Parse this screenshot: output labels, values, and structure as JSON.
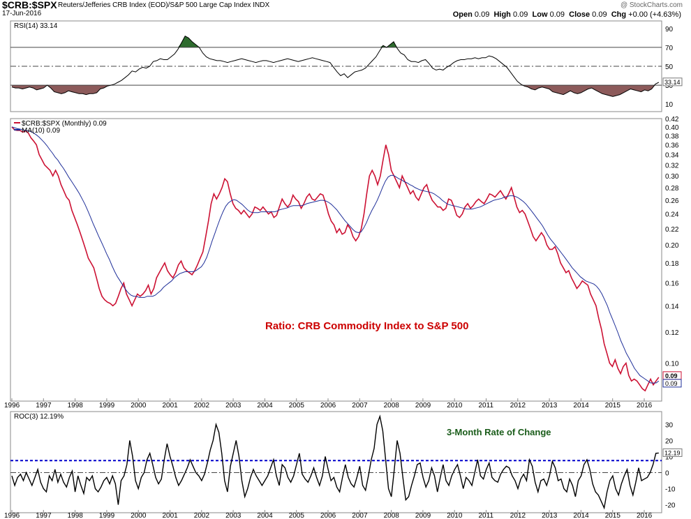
{
  "header": {
    "symbol": "$CRB:$SPX",
    "description": "Reuters/Jefferies CRB Index (EOD)/S&P 500 Large Cap Index",
    "exchange": "INDX",
    "date": "17-Jun-2016",
    "watermark": "@ StockCharts.com",
    "open_label": "Open",
    "open": "0.09",
    "high_label": "High",
    "high": "0.09",
    "low_label": "Low",
    "low": "0.09",
    "close_label": "Close",
    "close": "0.09",
    "chg_label": "Chg",
    "chg": "+0.00 (+4.63%)"
  },
  "colors": {
    "price": "#cc1133",
    "ma": "#1f2f99",
    "roc": "#000000",
    "roc_ref": "#0000cc",
    "rsi_over": "#2e6b2e",
    "rsi_under": "#8c5a5a",
    "annotation_red": "#cc0000",
    "annotation_green": "#1a5c1a"
  },
  "chart_data": [
    {
      "type": "line",
      "title": "RSI(14) 33.14",
      "legend": "RSI(14) 33.14",
      "last_value": "33.14",
      "yticks": [
        10,
        30,
        50,
        70,
        90
      ],
      "ylim": [
        2,
        98
      ],
      "reference_lines": [
        30,
        50,
        70
      ],
      "x_start": 1996.0,
      "x_end": 2016.46,
      "values": [
        28,
        27,
        27,
        26,
        27,
        28,
        27,
        25,
        26,
        27,
        30,
        27,
        23,
        22,
        21,
        22,
        24,
        23,
        22,
        21,
        21,
        20,
        21,
        21,
        22,
        26,
        27,
        29,
        30,
        31,
        33,
        35,
        38,
        41,
        45,
        44,
        47,
        49,
        48,
        50,
        55,
        56,
        58,
        57,
        57,
        60,
        63,
        68,
        75,
        82,
        80,
        76,
        73,
        70,
        64,
        60,
        58,
        57,
        56,
        56,
        55,
        54,
        55,
        56,
        57,
        58,
        57,
        56,
        55,
        54,
        55,
        56,
        56,
        55,
        54,
        55,
        56,
        57,
        58,
        57,
        56,
        55,
        56,
        57,
        58,
        59,
        58,
        57,
        56,
        55,
        54,
        49,
        44,
        40,
        42,
        38,
        41,
        44,
        45,
        46,
        48,
        52,
        56,
        60,
        66,
        72,
        70,
        73,
        76,
        69,
        64,
        62,
        57,
        55,
        55,
        54,
        56,
        57,
        53,
        48,
        46,
        47,
        46,
        49,
        51,
        54,
        56,
        57,
        57,
        58,
        58,
        59,
        58,
        59,
        59,
        61,
        60,
        58,
        55,
        52,
        49,
        44,
        39,
        34,
        31,
        29,
        28,
        26,
        25,
        27,
        28,
        27,
        26,
        23,
        22,
        21,
        20,
        22,
        24,
        22,
        21,
        22,
        24,
        26,
        27,
        25,
        23,
        21,
        20,
        19,
        18,
        19,
        20,
        22,
        24,
        26,
        25,
        24,
        23,
        25,
        24,
        26,
        31,
        33
      ]
    },
    {
      "type": "line",
      "title": "Ratio: CRB Commodity Index to S&P 500",
      "legend": [
        "$CRB:$SPX (Monthly) 0.09",
        "MA(10) 0.09"
      ],
      "yscale": "log",
      "ylim": [
        0.08,
        0.42
      ],
      "yticks": [
        "0.10",
        "0.12",
        "0.14",
        "0.16",
        "0.18",
        "0.20",
        "0.22",
        "0.24",
        "0.26",
        "0.28",
        "0.30",
        "0.32",
        "0.34",
        "0.36",
        "0.38",
        "0.40",
        "0.42"
      ],
      "last_labels": [
        "0.09",
        "0.09"
      ],
      "x_start": 1996.0,
      "x_end": 2016.46,
      "xticks": [
        "1996",
        "1997",
        "1998",
        "1999",
        "2000",
        "2001",
        "2002",
        "2003",
        "2004",
        "2005",
        "2006",
        "2007",
        "2008",
        "2009",
        "2010",
        "2011",
        "2012",
        "2013",
        "2014",
        "2015",
        "2016"
      ],
      "series": [
        {
          "name": "$CRB:$SPX (Monthly)",
          "values": [
            0.4,
            0.393,
            0.392,
            0.392,
            0.388,
            0.391,
            0.386,
            0.375,
            0.368,
            0.36,
            0.34,
            0.33,
            0.32,
            0.315,
            0.31,
            0.3,
            0.31,
            0.3,
            0.285,
            0.275,
            0.265,
            0.26,
            0.245,
            0.235,
            0.225,
            0.215,
            0.205,
            0.195,
            0.185,
            0.18,
            0.175,
            0.165,
            0.155,
            0.148,
            0.145,
            0.143,
            0.142,
            0.14,
            0.142,
            0.148,
            0.155,
            0.16,
            0.15,
            0.145,
            0.14,
            0.145,
            0.15,
            0.148,
            0.15,
            0.153,
            0.158,
            0.15,
            0.155,
            0.165,
            0.17,
            0.175,
            0.18,
            0.172,
            0.168,
            0.165,
            0.17,
            0.178,
            0.182,
            0.175,
            0.172,
            0.17,
            0.168,
            0.172,
            0.178,
            0.185,
            0.192,
            0.21,
            0.23,
            0.255,
            0.27,
            0.262,
            0.27,
            0.28,
            0.295,
            0.29,
            0.27,
            0.255,
            0.248,
            0.245,
            0.24,
            0.245,
            0.24,
            0.235,
            0.24,
            0.25,
            0.248,
            0.245,
            0.25,
            0.245,
            0.24,
            0.243,
            0.235,
            0.238,
            0.25,
            0.262,
            0.255,
            0.25,
            0.255,
            0.268,
            0.262,
            0.258,
            0.248,
            0.255,
            0.265,
            0.27,
            0.262,
            0.26,
            0.265,
            0.27,
            0.268,
            0.255,
            0.24,
            0.23,
            0.225,
            0.215,
            0.22,
            0.213,
            0.215,
            0.225,
            0.22,
            0.21,
            0.205,
            0.21,
            0.22,
            0.24,
            0.27,
            0.3,
            0.31,
            0.3,
            0.285,
            0.3,
            0.33,
            0.36,
            0.34,
            0.31,
            0.3,
            0.29,
            0.28,
            0.3,
            0.29,
            0.28,
            0.27,
            0.275,
            0.265,
            0.26,
            0.27,
            0.28,
            0.285,
            0.27,
            0.26,
            0.255,
            0.25,
            0.25,
            0.245,
            0.248,
            0.262,
            0.26,
            0.25,
            0.238,
            0.235,
            0.24,
            0.25,
            0.255,
            0.248,
            0.252,
            0.258,
            0.262,
            0.258,
            0.255,
            0.262,
            0.27,
            0.268,
            0.265,
            0.27,
            0.275,
            0.268,
            0.262,
            0.27,
            0.28,
            0.265,
            0.25,
            0.242,
            0.245,
            0.24,
            0.23,
            0.22,
            0.21,
            0.205,
            0.21,
            0.215,
            0.21,
            0.2,
            0.195,
            0.195,
            0.198,
            0.19,
            0.18,
            0.175,
            0.17,
            0.172,
            0.165,
            0.16,
            0.155,
            0.158,
            0.162,
            0.16,
            0.158,
            0.15,
            0.145,
            0.14,
            0.13,
            0.122,
            0.112,
            0.106,
            0.1,
            0.098,
            0.102,
            0.097,
            0.094,
            0.098,
            0.1,
            0.093,
            0.09,
            0.091,
            0.09,
            0.088,
            0.086,
            0.085,
            0.088,
            0.091,
            0.088,
            0.09,
            0.092
          ]
        },
        {
          "name": "MA(10)",
          "values": [
            0.4,
            0.398,
            0.396,
            0.395,
            0.393,
            0.392,
            0.391,
            0.389,
            0.386,
            0.382,
            0.377,
            0.371,
            0.365,
            0.358,
            0.35,
            0.343,
            0.335,
            0.329,
            0.321,
            0.314,
            0.306,
            0.298,
            0.291,
            0.284,
            0.277,
            0.27,
            0.262,
            0.254,
            0.245,
            0.236,
            0.227,
            0.219,
            0.211,
            0.204,
            0.197,
            0.19,
            0.184,
            0.177,
            0.171,
            0.166,
            0.162,
            0.158,
            0.154,
            0.151,
            0.149,
            0.148,
            0.148,
            0.147,
            0.147,
            0.147,
            0.148,
            0.148,
            0.148,
            0.149,
            0.151,
            0.153,
            0.156,
            0.158,
            0.16,
            0.162,
            0.165,
            0.167,
            0.169,
            0.17,
            0.171,
            0.171,
            0.171,
            0.171,
            0.172,
            0.174,
            0.176,
            0.18,
            0.186,
            0.195,
            0.205,
            0.214,
            0.224,
            0.234,
            0.243,
            0.251,
            0.256,
            0.259,
            0.261,
            0.26,
            0.257,
            0.254,
            0.25,
            0.246,
            0.243,
            0.242,
            0.242,
            0.242,
            0.243,
            0.243,
            0.243,
            0.243,
            0.243,
            0.243,
            0.244,
            0.246,
            0.247,
            0.248,
            0.249,
            0.251,
            0.252,
            0.252,
            0.252,
            0.252,
            0.253,
            0.255,
            0.256,
            0.257,
            0.258,
            0.259,
            0.26,
            0.26,
            0.259,
            0.257,
            0.254,
            0.25,
            0.246,
            0.241,
            0.236,
            0.231,
            0.227,
            0.223,
            0.219,
            0.216,
            0.215,
            0.216,
            0.221,
            0.228,
            0.237,
            0.245,
            0.252,
            0.26,
            0.27,
            0.281,
            0.291,
            0.298,
            0.301,
            0.301,
            0.298,
            0.295,
            0.293,
            0.29,
            0.288,
            0.285,
            0.283,
            0.28,
            0.278,
            0.276,
            0.275,
            0.274,
            0.273,
            0.272,
            0.27,
            0.267,
            0.264,
            0.26,
            0.257,
            0.254,
            0.253,
            0.252,
            0.251,
            0.25,
            0.249,
            0.248,
            0.247,
            0.247,
            0.247,
            0.248,
            0.249,
            0.25,
            0.252,
            0.254,
            0.256,
            0.258,
            0.26,
            0.261,
            0.262,
            0.263,
            0.265,
            0.266,
            0.267,
            0.267,
            0.266,
            0.264,
            0.261,
            0.258,
            0.254,
            0.249,
            0.244,
            0.239,
            0.234,
            0.229,
            0.224,
            0.218,
            0.212,
            0.207,
            0.203,
            0.199,
            0.195,
            0.191,
            0.187,
            0.183,
            0.179,
            0.175,
            0.172,
            0.169,
            0.166,
            0.164,
            0.162,
            0.161,
            0.16,
            0.159,
            0.157,
            0.154,
            0.15,
            0.145,
            0.14,
            0.134,
            0.129,
            0.124,
            0.119,
            0.114,
            0.11,
            0.106,
            0.103,
            0.1,
            0.097,
            0.095,
            0.093,
            0.092,
            0.091,
            0.09,
            0.089,
            0.089,
            0.089,
            0.09
          ]
        }
      ]
    },
    {
      "type": "line",
      "title": "3-Month Rate of Change",
      "legend": "ROC(3) 12.19%",
      "last_value": "12.19",
      "reference_value": 7.5,
      "yticks": [
        -20,
        -10,
        0,
        10,
        20,
        30
      ],
      "ylim": [
        -25,
        38
      ],
      "x_start": 1996.0,
      "x_end": 2016.46,
      "xticks": [
        "1996",
        "1997",
        "1998",
        "1999",
        "2000",
        "2001",
        "2002",
        "2003",
        "2004",
        "2005",
        "2006",
        "2007",
        "2008",
        "2009",
        "2010",
        "2011",
        "2012",
        "2013",
        "2014",
        "2015",
        "2016"
      ],
      "values": [
        -2,
        -8,
        -3,
        -1,
        -5,
        0,
        -4,
        -8,
        -3,
        2,
        -6,
        -10,
        -12,
        -2,
        -5,
        2,
        -6,
        -1,
        -6,
        -9,
        -3,
        1,
        -12,
        -2,
        -8,
        -13,
        -3,
        -5,
        -2,
        -10,
        -12,
        -9,
        -5,
        -3,
        -7,
        -2,
        -7,
        -20,
        -5,
        -2,
        5,
        20,
        10,
        -5,
        -10,
        -3,
        0,
        8,
        12,
        5,
        -3,
        -7,
        -4,
        8,
        18,
        10,
        4,
        -3,
        -8,
        -5,
        -1,
        3,
        8,
        4,
        0,
        -2,
        -5,
        -1,
        6,
        14,
        20,
        30,
        25,
        12,
        -5,
        -12,
        4,
        12,
        20,
        10,
        -5,
        -15,
        -10,
        -3,
        2,
        -2,
        -5,
        -8,
        -5,
        -2,
        3,
        8,
        -2,
        -8,
        5,
        3,
        -3,
        -6,
        -2,
        5,
        12,
        -1,
        -4,
        -6,
        -2,
        3,
        -3,
        -8,
        -2,
        10,
        2,
        -5,
        -3,
        -9,
        -12,
        -3,
        5,
        -3,
        -7,
        -9,
        -3,
        4,
        -8,
        -11,
        -2,
        8,
        15,
        30,
        35,
        26,
        8,
        -10,
        -15,
        2,
        20,
        12,
        -3,
        -17,
        -15,
        -8,
        -2,
        5,
        6,
        -3,
        -9,
        -5,
        3,
        -2,
        -12,
        -3,
        5,
        -5,
        -8,
        -2,
        2,
        5,
        -2,
        -10,
        -3,
        -5,
        -8,
        0,
        8,
        -2,
        -4,
        2,
        6,
        -3,
        -5,
        -6,
        -1,
        2,
        4,
        3,
        -2,
        -5,
        -10,
        -4,
        -1,
        -5,
        8,
        4,
        -6,
        -12,
        -5,
        -4,
        -8,
        -2,
        7,
        3,
        -5,
        -4,
        -10,
        -12,
        -4,
        -8,
        -15,
        -5,
        -2,
        5,
        8,
        2,
        -7,
        -12,
        -14,
        -18,
        -22,
        -12,
        -5,
        -2,
        -10,
        -14,
        -7,
        -2,
        2,
        -8,
        -14,
        -6,
        3,
        -5,
        -4,
        -3,
        0,
        5,
        12,
        12.19
      ]
    }
  ],
  "annotations": {
    "main": "Ratio: CRB Commodity Index to S&P 500",
    "roc": "3-Month Rate of Change"
  }
}
